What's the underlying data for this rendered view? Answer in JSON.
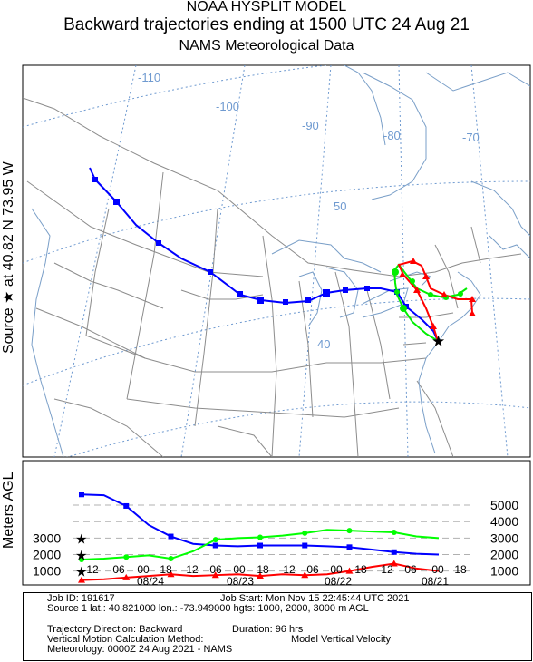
{
  "header": {
    "line1": "NOAA HYSPLIT MODEL",
    "line2": "Backward trajectories ending at 1500 UTC 24 Aug 21",
    "line3": "NAMS Meteorological Data"
  },
  "source_label": "Source ★ at   40.82 N   73.95 W",
  "map": {
    "lon_labels": [
      "-110",
      "-100",
      "-90",
      "-80",
      "-70"
    ],
    "lat_labels": [
      "50",
      "40"
    ]
  },
  "chart_data": {
    "type": "line",
    "title": "Backward trajectories ending at 1500 UTC 24 Aug 21",
    "ylabel": "Meters AGL",
    "ylim": [
      0,
      6000
    ],
    "y_ticks_left": [
      "3000",
      "2000",
      "1000"
    ],
    "y_ticks_right": [
      "5000",
      "4000",
      "3000",
      "2000",
      "1000"
    ],
    "x_tick_labels": [
      "12",
      "06",
      "00",
      "18",
      "12",
      "06",
      "00",
      "18",
      "12",
      "06",
      "00",
      "18",
      "12",
      "06",
      "00",
      "18"
    ],
    "x_date_labels": [
      "08/24",
      "08/23",
      "08/22",
      "08/21"
    ],
    "x_hours_before_arrival": [
      0,
      6,
      12,
      18,
      24,
      30,
      36,
      42,
      48,
      54,
      60,
      66,
      72,
      78,
      84,
      90,
      96
    ],
    "series": [
      {
        "color": "#ff0000",
        "start_height_m": 1000,
        "heights_m": [
          1000,
          1150,
          1450,
          1250,
          1000,
          800,
          750,
          800,
          700,
          800,
          750,
          700,
          800,
          700,
          600,
          500,
          450
        ]
      },
      {
        "color": "#0000ff",
        "start_height_m": 2000,
        "heights_m": [
          2000,
          2050,
          2150,
          2300,
          2450,
          2500,
          2550,
          2550,
          2550,
          2500,
          2550,
          2650,
          3100,
          3800,
          4950,
          5600,
          5650
        ]
      },
      {
        "color": "#00ff00",
        "start_height_m": 3000,
        "heights_m": [
          3000,
          3100,
          3350,
          3400,
          3450,
          3500,
          3300,
          3150,
          3050,
          3000,
          2900,
          2200,
          1750,
          1950,
          1850,
          1750,
          1700
        ]
      }
    ],
    "map_paths": {
      "red": [
        [
          -73.95,
          40.82
        ],
        [
          -75.0,
          43.0
        ],
        [
          -76.5,
          45.0
        ],
        [
          -75.0,
          46.5
        ],
        [
          -72.0,
          46.0
        ],
        [
          -69.0,
          45.3
        ],
        [
          -67.5,
          45.0
        ]
      ],
      "blue": [
        [
          -73.95,
          40.82
        ],
        [
          -77.0,
          43.0
        ],
        [
          -82.0,
          43.5
        ],
        [
          -90.0,
          44.5
        ],
        [
          -98.0,
          45.5
        ],
        [
          -108.0,
          48.0
        ],
        [
          -115.0,
          51.5
        ]
      ],
      "green": [
        [
          -73.95,
          40.82
        ],
        [
          -75.5,
          42.5
        ],
        [
          -77.0,
          45.0
        ],
        [
          -74.0,
          45.5
        ],
        [
          -70.5,
          45.8
        ],
        [
          -68.0,
          46.3
        ]
      ]
    }
  },
  "footer": {
    "job_id": "Job ID: 191617",
    "job_start": "Job Start: Mon Nov 15 22:45:44 UTC 2021",
    "source_line": "Source 1 lat.: 40.821000  lon.: -73.949000  hgts: 1000, 2000, 3000 m AGL",
    "traj_direction": "Trajectory Direction: Backward",
    "duration": "Duration: 96 hrs",
    "vertical_method_label": "Vertical Motion Calculation Method:",
    "vertical_method_value": "Model Vertical Velocity",
    "meteorology": "Meteorology: 0000Z 24 Aug 2021 - NAMS"
  }
}
